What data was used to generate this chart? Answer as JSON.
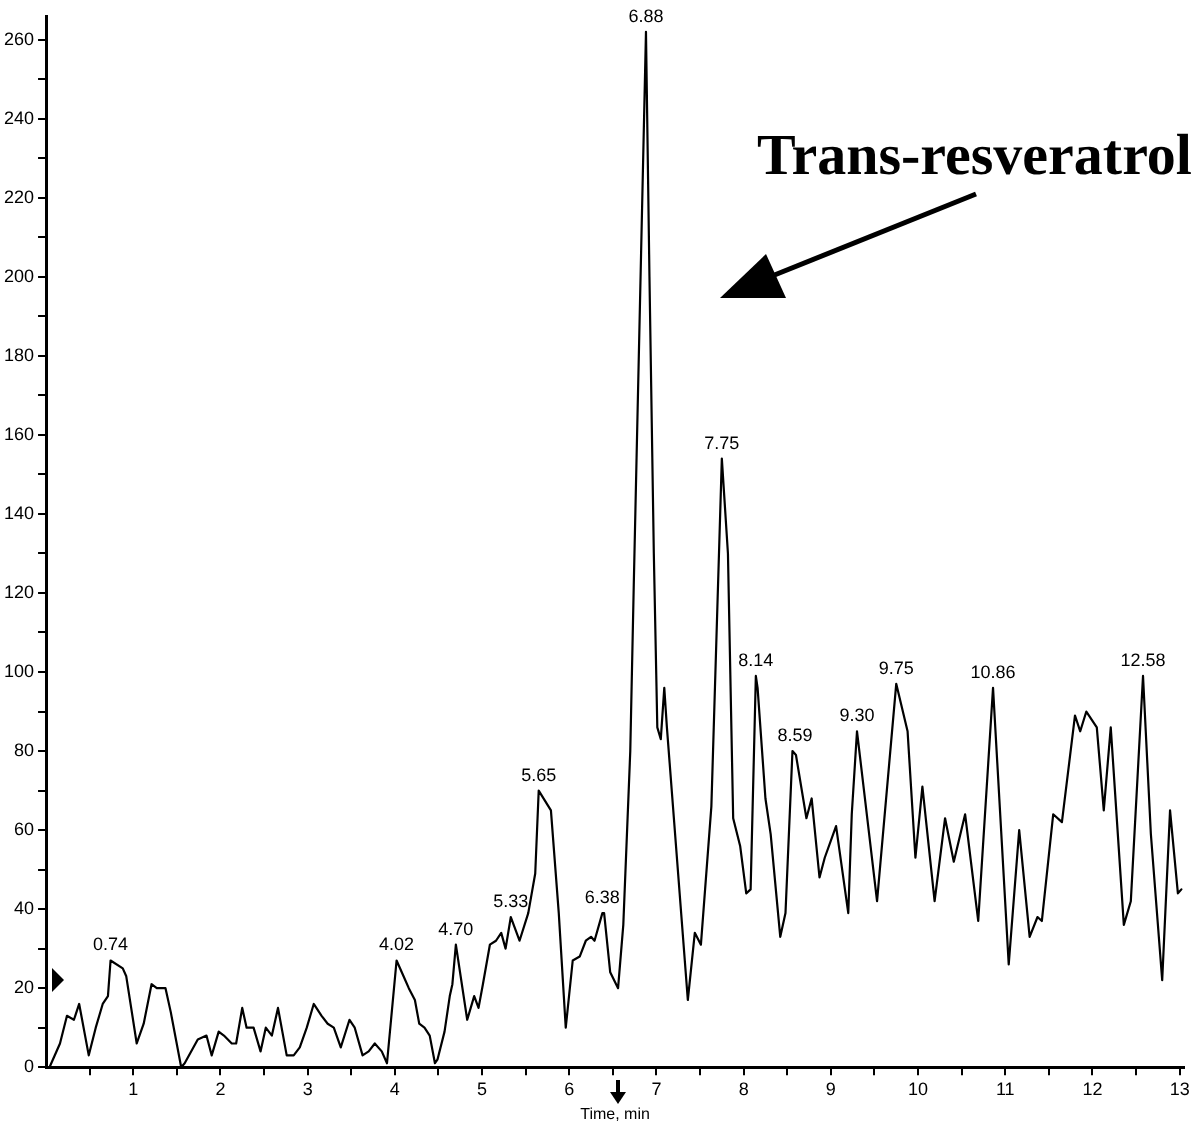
{
  "chart_data": {
    "type": "line",
    "xlabel": "Time, min",
    "x": [
      0.04,
      0.16,
      0.24,
      0.32,
      0.38,
      0.49,
      0.57,
      0.65,
      0.71,
      0.74,
      0.88,
      0.92,
      1.04,
      1.12,
      1.21,
      1.27,
      1.37,
      1.43,
      1.55,
      1.59,
      1.74,
      1.84,
      1.9,
      1.98,
      2.04,
      2.13,
      2.18,
      2.25,
      2.3,
      2.38,
      2.46,
      2.52,
      2.59,
      2.66,
      2.76,
      2.84,
      2.91,
      2.99,
      3.07,
      3.16,
      3.23,
      3.3,
      3.38,
      3.48,
      3.54,
      3.63,
      3.7,
      3.77,
      3.85,
      3.91,
      4.02,
      4.1,
      4.16,
      4.23,
      4.28,
      4.34,
      4.4,
      4.46,
      4.49,
      4.57,
      4.63,
      4.66,
      4.7,
      4.83,
      4.91,
      4.96,
      5.01,
      5.09,
      5.16,
      5.22,
      5.27,
      5.33,
      5.43,
      5.53,
      5.61,
      5.65,
      5.79,
      5.88,
      5.96,
      6.04,
      6.12,
      6.19,
      6.25,
      6.29,
      6.38,
      6.4,
      6.47,
      6.56,
      6.62,
      6.7,
      6.74,
      6.88,
      6.92,
      6.97,
      7.01,
      7.05,
      7.09,
      7.12,
      7.36,
      7.44,
      7.51,
      7.63,
      7.75,
      7.82,
      7.88,
      7.96,
      8.03,
      8.08,
      8.14,
      8.16,
      8.25,
      8.31,
      8.42,
      8.48,
      8.56,
      8.6,
      8.72,
      8.78,
      8.87,
      8.93,
      9.06,
      9.2,
      9.24,
      9.3,
      9.53,
      9.75,
      9.88,
      9.97,
      10.05,
      10.19,
      10.31,
      10.41,
      10.54,
      10.69,
      10.86,
      11.04,
      11.16,
      11.28,
      11.37,
      11.42,
      11.55,
      11.65,
      11.8,
      11.86,
      11.93,
      12.05,
      12.13,
      12.21,
      12.36,
      12.44,
      12.58,
      12.67,
      12.8,
      12.89,
      12.98,
      13.02
    ],
    "series": [
      {
        "color": "#000000",
        "values": [
          0,
          6,
          13,
          12,
          16,
          3,
          10,
          16,
          18,
          27,
          25,
          23,
          6,
          11,
          21,
          20,
          20,
          14,
          0,
          1,
          7,
          8,
          3,
          9,
          8,
          6,
          6,
          15,
          10,
          10,
          4,
          10,
          8,
          15,
          3,
          3,
          5,
          10,
          16,
          13,
          11,
          10,
          5,
          12,
          10,
          3,
          4,
          6,
          4,
          1,
          27,
          23,
          20,
          17,
          11,
          10,
          8,
          1,
          2,
          9,
          18,
          21,
          31,
          12,
          18,
          15,
          21,
          31,
          32,
          34,
          30,
          38,
          32,
          39,
          49,
          70,
          65,
          39,
          10,
          27,
          28,
          32,
          33,
          32,
          39,
          39,
          24,
          20,
          36,
          80,
          122,
          262,
          200,
          130,
          86,
          83,
          96,
          86,
          17,
          34,
          31,
          66,
          154,
          130,
          63,
          56,
          44,
          45,
          99,
          96,
          68,
          59,
          33,
          39,
          80,
          79,
          63,
          68,
          48,
          53,
          61,
          39,
          64,
          85,
          42,
          97,
          85,
          53,
          71,
          42,
          63,
          52,
          64,
          37,
          96,
          26,
          60,
          33,
          38,
          37,
          64,
          62,
          89,
          85,
          90,
          86,
          65,
          86,
          36,
          42,
          99,
          59,
          22,
          65,
          44,
          45
        ]
      }
    ],
    "xlim": [
      0,
      13.05
    ],
    "ylim": [
      0,
      266
    ],
    "xticks": [
      {
        "value": 0.5,
        "label": null
      },
      1,
      {
        "value": 1.5,
        "label": null
      },
      2,
      {
        "value": 2.5,
        "label": null
      },
      3,
      {
        "value": 3.5,
        "label": null
      },
      4,
      {
        "value": 4.5,
        "label": null
      },
      5,
      {
        "value": 5.5,
        "label": null
      },
      6,
      {
        "value": 6.5,
        "label": null
      },
      7,
      {
        "value": 7.5,
        "label": null
      },
      8,
      {
        "value": 8.5,
        "label": null
      },
      9,
      {
        "value": 9.5,
        "label": null
      },
      10,
      {
        "value": 10.5,
        "label": null
      },
      11,
      {
        "value": 11.5,
        "label": null
      },
      12,
      {
        "value": 12.5,
        "label": null
      },
      13
    ],
    "yticks": [
      0,
      {
        "value": 10,
        "label": null
      },
      20,
      {
        "value": 30,
        "label": null
      },
      40,
      {
        "value": 50,
        "label": null
      },
      60,
      {
        "value": 70,
        "label": null
      },
      80,
      {
        "value": 90,
        "label": null
      },
      100,
      {
        "value": 110,
        "label": null
      },
      120,
      {
        "value": 130,
        "label": null
      },
      140,
      {
        "value": 150,
        "label": null
      },
      160,
      {
        "value": 170,
        "label": null
      },
      180,
      {
        "value": 190,
        "label": null
      },
      200,
      {
        "value": 210,
        "label": null
      },
      220,
      {
        "value": 230,
        "label": null
      },
      240,
      {
        "value": 250,
        "label": null
      },
      260
    ],
    "grid": false,
    "legend": false,
    "marker": "none",
    "line_style": "solid",
    "annotations": [
      {
        "text": "0.74",
        "x": 0.74,
        "y": 27
      },
      {
        "text": "4.02",
        "x": 4.02,
        "y": 27
      },
      {
        "text": "4.70",
        "x": 4.7,
        "y": 31
      },
      {
        "text": "5.33",
        "x": 5.33,
        "y": 38
      },
      {
        "text": "5.65",
        "x": 5.65,
        "y": 70
      },
      {
        "text": "6.38",
        "x": 6.38,
        "y": 39
      },
      {
        "text": "6.88",
        "x": 6.88,
        "y": 262
      },
      {
        "text": "7.75",
        "x": 7.75,
        "y": 154
      },
      {
        "text": "8.14",
        "x": 8.14,
        "y": 99
      },
      {
        "text": "8.59",
        "x": 8.59,
        "y": 80
      },
      {
        "text": "9.30",
        "x": 9.3,
        "y": 85
      },
      {
        "text": "9.75",
        "x": 9.75,
        "y": 97
      },
      {
        "text": "10.86",
        "x": 10.86,
        "y": 96
      },
      {
        "text": "12.58",
        "x": 12.58,
        "y": 99
      },
      "Trans-resveratrol"
    ]
  }
}
